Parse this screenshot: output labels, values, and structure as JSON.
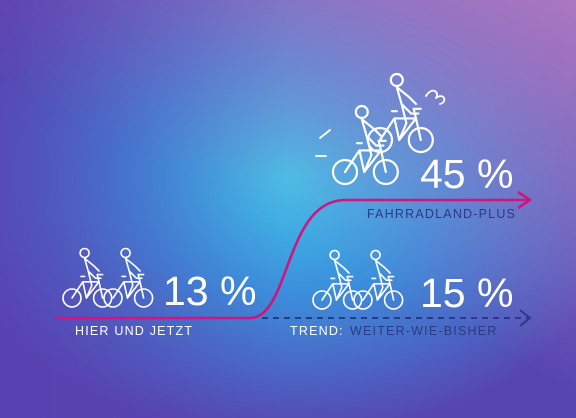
{
  "scenarios": [
    {
      "value": "13 %",
      "label": "HIER UND JETZT"
    },
    {
      "value": "45 %",
      "label": "FAHRRADLAND-PLUS"
    },
    {
      "value": "15 %",
      "prefix": "TREND:",
      "label": "WEITER-WIE-BISHER"
    }
  ]
}
